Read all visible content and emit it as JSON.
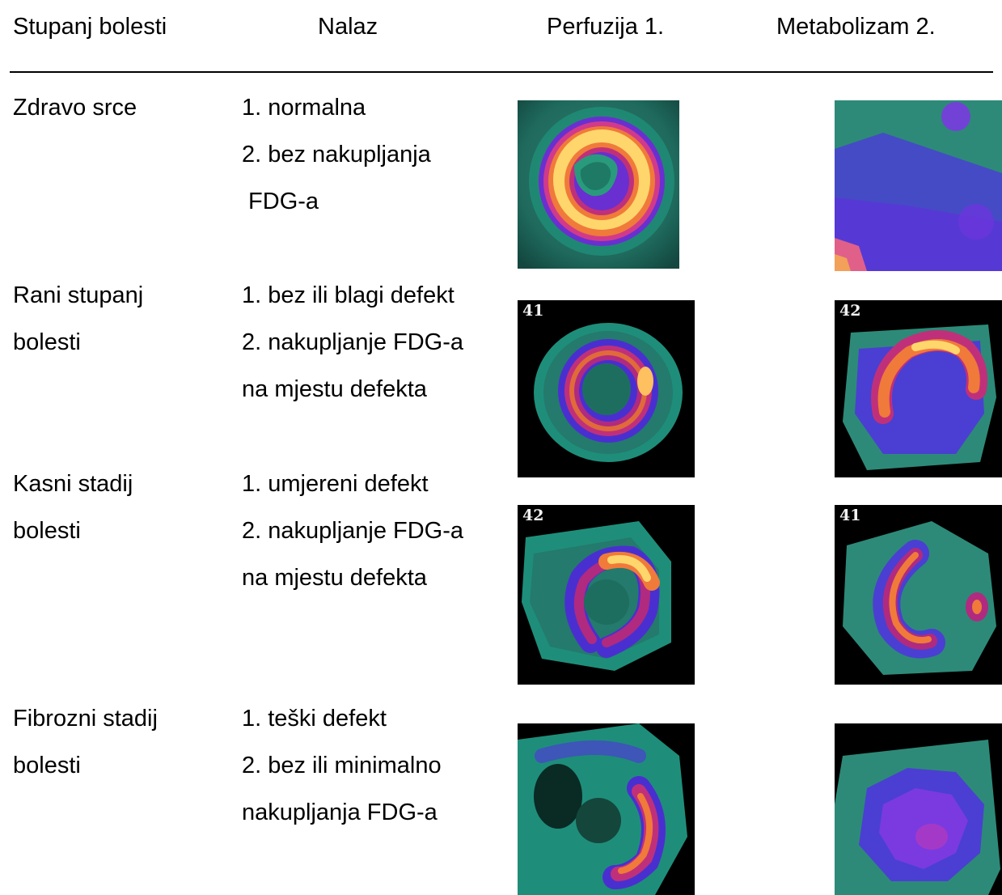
{
  "headers": {
    "stage": "Stupanj bolesti",
    "finding": "Nalaz",
    "perfusion": "Perfuzija 1.",
    "metabolism": "Metabolizam 2."
  },
  "rows": [
    {
      "stage": [
        "Zdravo srce"
      ],
      "finding": [
        "1.  normalna",
        "2. bez nakupljanja",
        " FDG-a"
      ],
      "perfusion_label": "",
      "metabolism_label": ""
    },
    {
      "stage": [
        "Rani stupanj",
        "bolesti"
      ],
      "finding": [
        "1. bez ili blagi defekt",
        "2. nakupljanje FDG-a",
        "na mjestu defekta"
      ],
      "perfusion_label": "41",
      "metabolism_label": "42"
    },
    {
      "stage": [
        "Kasni stadij",
        "bolesti"
      ],
      "finding": [
        "1. umjereni defekt",
        "2. nakupljanje FDG-a",
        "na mjestu defekta"
      ],
      "perfusion_label": "42",
      "metabolism_label": "41"
    },
    {
      "stage": [
        "Fibrozni stadij",
        "bolesti"
      ],
      "finding": [
        "1. teški defekt",
        "2. bez ili minimalno",
        "nakupljanja FDG-a"
      ],
      "perfusion_label": "",
      "metabolism_label": ""
    }
  ]
}
